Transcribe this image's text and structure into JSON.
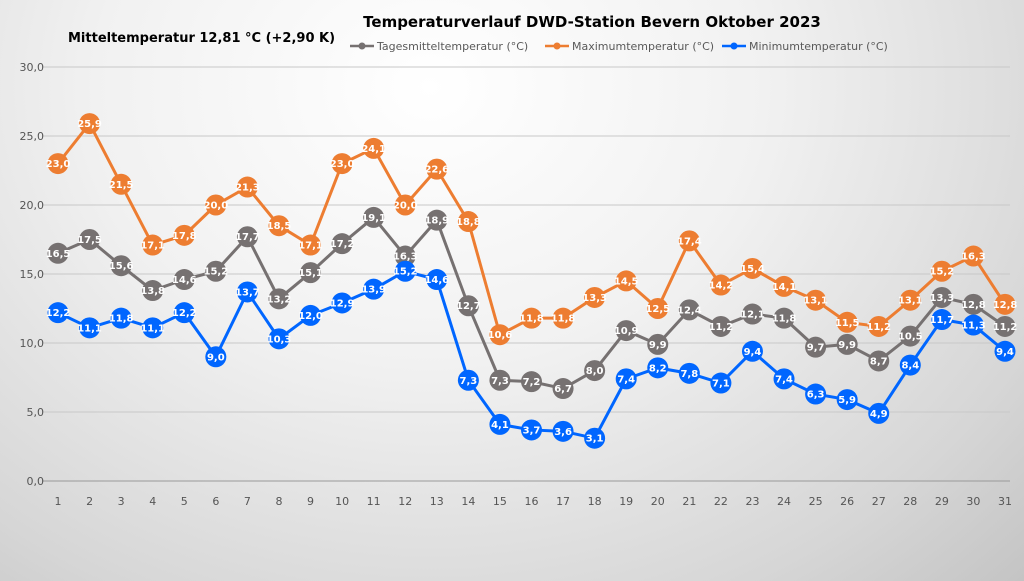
{
  "chart_data": {
    "type": "line",
    "title": "Temperaturverlauf  DWD-Station  Bevern Oktober 2023",
    "subtitle": "Mitteltemperatur 12,81 °C (+2,90 K)",
    "xlabel": "",
    "ylabel": "",
    "ylim": [
      0,
      30
    ],
    "yticks": [
      "0,0",
      "5,0",
      "10,0",
      "15,0",
      "20,0",
      "25,0",
      "30,0"
    ],
    "grid": true,
    "legend": "top",
    "x": [
      1,
      2,
      3,
      4,
      5,
      6,
      7,
      8,
      9,
      10,
      11,
      12,
      13,
      14,
      15,
      16,
      17,
      18,
      19,
      20,
      21,
      22,
      23,
      24,
      25,
      26,
      27,
      28,
      29,
      30,
      31
    ],
    "series": [
      {
        "name": "Tagesmitteltemperatur (°C)",
        "color": "#767171",
        "values": [
          16.5,
          17.5,
          15.6,
          13.8,
          14.6,
          15.2,
          17.7,
          13.2,
          15.1,
          17.2,
          19.1,
          16.3,
          18.9,
          12.7,
          7.3,
          7.2,
          6.7,
          8.0,
          10.9,
          9.9,
          12.4,
          11.2,
          12.1,
          11.8,
          9.7,
          9.9,
          8.7,
          10.5,
          13.3,
          12.8,
          11.2
        ]
      },
      {
        "name": "Maximumtemperatur (°C)",
        "color": "#ED7D31",
        "values": [
          23.0,
          25.9,
          21.5,
          17.1,
          17.8,
          20.0,
          21.3,
          18.5,
          17.1,
          23.0,
          24.1,
          20.0,
          22.6,
          18.8,
          10.6,
          11.8,
          11.8,
          13.3,
          14.5,
          12.5,
          17.4,
          14.2,
          15.4,
          14.1,
          13.1,
          11.5,
          11.2,
          13.1,
          15.2,
          16.3,
          12.8
        ]
      },
      {
        "name": "Minimumtemperatur (°C)",
        "color": "#0066FF",
        "values": [
          12.2,
          11.1,
          11.8,
          11.1,
          12.2,
          9.0,
          13.7,
          10.3,
          12.0,
          12.9,
          13.9,
          15.2,
          14.6,
          7.3,
          4.1,
          3.7,
          3.6,
          3.1,
          7.4,
          8.2,
          7.8,
          7.1,
          9.4,
          7.4,
          6.3,
          5.9,
          4.9,
          8.4,
          11.7,
          11.3,
          9.4
        ]
      }
    ]
  }
}
